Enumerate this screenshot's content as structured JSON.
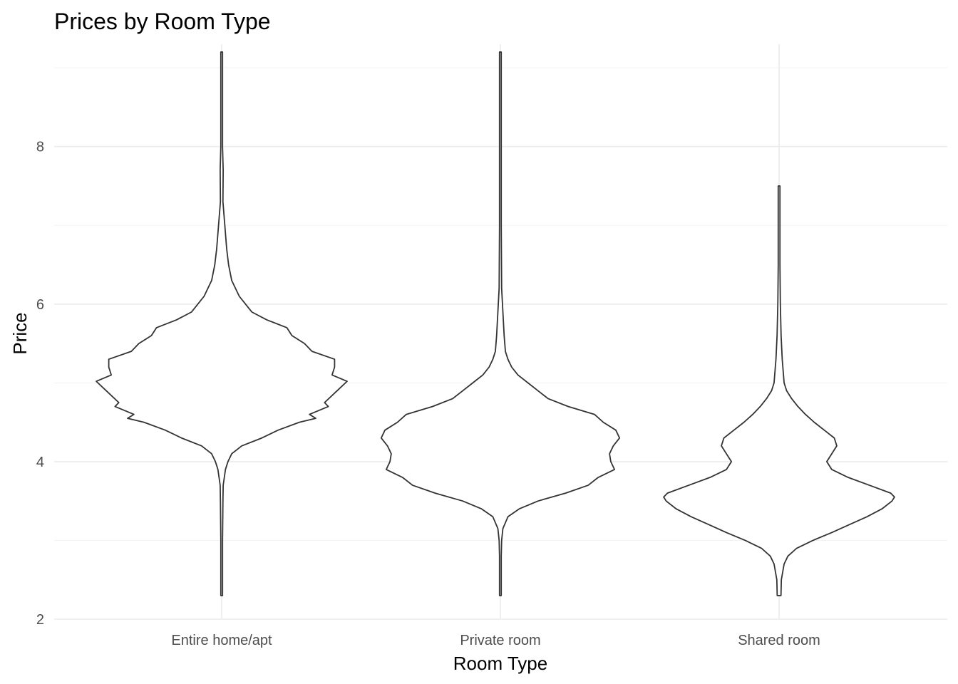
{
  "chart_data": {
    "type": "violin",
    "title": "Prices by Room Type",
    "xlabel": "Room Type",
    "ylabel": "Price",
    "categories": [
      "Entire home/apt",
      "Private room",
      "Shared room"
    ],
    "ylim": [
      2,
      9.3
    ],
    "yticks": [
      2,
      4,
      6,
      8
    ],
    "grid": true,
    "legend": "none",
    "colors": {
      "outline": "#333333",
      "fill": "#ffffff",
      "grid": "#ebebeb",
      "tick_text": "#4d4d4d"
    },
    "series": [
      {
        "category": "Entire home/apt",
        "range": [
          2.3,
          9.2
        ],
        "density": [
          [
            2.3,
            0.006
          ],
          [
            3.0,
            0.006
          ],
          [
            3.5,
            0.01
          ],
          [
            3.7,
            0.012
          ],
          [
            3.9,
            0.03
          ],
          [
            4.0,
            0.05
          ],
          [
            4.1,
            0.08
          ],
          [
            4.2,
            0.16
          ],
          [
            4.3,
            0.32
          ],
          [
            4.4,
            0.45
          ],
          [
            4.5,
            0.62
          ],
          [
            4.55,
            0.75
          ],
          [
            4.6,
            0.7
          ],
          [
            4.7,
            0.85
          ],
          [
            4.75,
            0.82
          ],
          [
            4.9,
            0.92
          ],
          [
            5.02,
            1.0
          ],
          [
            5.1,
            0.88
          ],
          [
            5.2,
            0.9
          ],
          [
            5.3,
            0.9
          ],
          [
            5.4,
            0.72
          ],
          [
            5.5,
            0.66
          ],
          [
            5.6,
            0.56
          ],
          [
            5.7,
            0.52
          ],
          [
            5.8,
            0.36
          ],
          [
            5.9,
            0.24
          ],
          [
            6.0,
            0.19
          ],
          [
            6.1,
            0.14
          ],
          [
            6.3,
            0.08
          ],
          [
            6.5,
            0.055
          ],
          [
            6.7,
            0.04
          ],
          [
            7.0,
            0.025
          ],
          [
            7.3,
            0.01
          ],
          [
            7.7,
            0.012
          ],
          [
            8.0,
            0.006
          ],
          [
            9.2,
            0.004
          ]
        ]
      },
      {
        "category": "Private room",
        "range": [
          2.3,
          9.2
        ],
        "density": [
          [
            2.3,
            0.006
          ],
          [
            2.8,
            0.006
          ],
          [
            3.0,
            0.01
          ],
          [
            3.15,
            0.02
          ],
          [
            3.3,
            0.06
          ],
          [
            3.4,
            0.15
          ],
          [
            3.5,
            0.3
          ],
          [
            3.6,
            0.52
          ],
          [
            3.7,
            0.7
          ],
          [
            3.8,
            0.78
          ],
          [
            3.9,
            0.91
          ],
          [
            4.0,
            0.88
          ],
          [
            4.1,
            0.87
          ],
          [
            4.2,
            0.9
          ],
          [
            4.3,
            0.95
          ],
          [
            4.4,
            0.92
          ],
          [
            4.5,
            0.82
          ],
          [
            4.6,
            0.75
          ],
          [
            4.7,
            0.54
          ],
          [
            4.8,
            0.38
          ],
          [
            4.9,
            0.3
          ],
          [
            5.0,
            0.22
          ],
          [
            5.1,
            0.14
          ],
          [
            5.2,
            0.09
          ],
          [
            5.3,
            0.06
          ],
          [
            5.4,
            0.04
          ],
          [
            5.6,
            0.03
          ],
          [
            5.9,
            0.02
          ],
          [
            6.2,
            0.01
          ],
          [
            7.0,
            0.005
          ],
          [
            8.0,
            0.004
          ],
          [
            9.2,
            0.003
          ]
        ]
      },
      {
        "category": "Shared room",
        "range": [
          2.3,
          7.5
        ],
        "density": [
          [
            2.3,
            0.015
          ],
          [
            2.5,
            0.018
          ],
          [
            2.7,
            0.04
          ],
          [
            2.8,
            0.07
          ],
          [
            2.9,
            0.14
          ],
          [
            3.0,
            0.27
          ],
          [
            3.1,
            0.42
          ],
          [
            3.2,
            0.56
          ],
          [
            3.3,
            0.7
          ],
          [
            3.4,
            0.82
          ],
          [
            3.5,
            0.9
          ],
          [
            3.55,
            0.92
          ],
          [
            3.6,
            0.89
          ],
          [
            3.7,
            0.72
          ],
          [
            3.8,
            0.55
          ],
          [
            3.9,
            0.42
          ],
          [
            4.0,
            0.38
          ],
          [
            4.1,
            0.42
          ],
          [
            4.2,
            0.46
          ],
          [
            4.3,
            0.44
          ],
          [
            4.4,
            0.36
          ],
          [
            4.5,
            0.28
          ],
          [
            4.6,
            0.21
          ],
          [
            4.7,
            0.15
          ],
          [
            4.8,
            0.1
          ],
          [
            4.9,
            0.06
          ],
          [
            5.0,
            0.04
          ],
          [
            5.3,
            0.025
          ],
          [
            5.6,
            0.016
          ],
          [
            6.0,
            0.01
          ],
          [
            6.5,
            0.006
          ],
          [
            7.0,
            0.004
          ],
          [
            7.5,
            0.003
          ]
        ]
      }
    ]
  }
}
